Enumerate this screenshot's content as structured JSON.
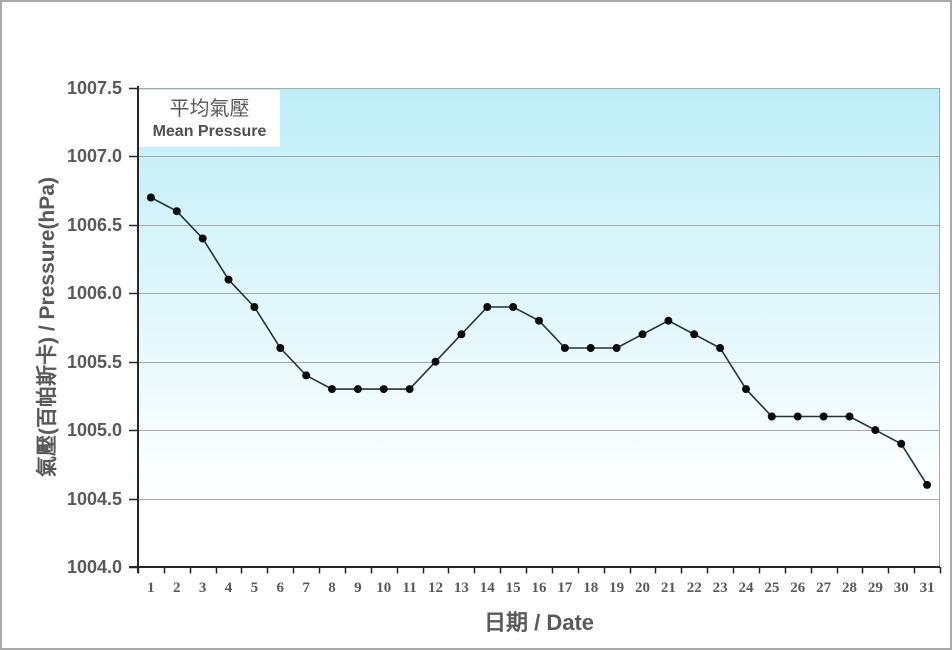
{
  "chart_data": {
    "type": "line",
    "legend": {
      "zh": "平均氣壓",
      "en": "Mean Pressure"
    },
    "xlabel": "日期 / Date",
    "ylabel": "氣壓(百帕斯卡) / Pressure(hPa)",
    "x": [
      "1",
      "2",
      "3",
      "4",
      "5",
      "6",
      "7",
      "8",
      "9",
      "10",
      "11",
      "12",
      "13",
      "14",
      "15",
      "16",
      "17",
      "18",
      "19",
      "20",
      "21",
      "22",
      "23",
      "24",
      "25",
      "26",
      "27",
      "28",
      "29",
      "30",
      "31"
    ],
    "series": [
      {
        "name": "Mean Pressure",
        "values": [
          1006.7,
          1006.6,
          1006.4,
          1006.1,
          1005.9,
          1005.6,
          1005.4,
          1005.3,
          1005.3,
          1005.3,
          1005.3,
          1005.5,
          1005.7,
          1005.9,
          1005.9,
          1005.8,
          1005.6,
          1005.6,
          1005.6,
          1005.7,
          1005.8,
          1005.7,
          1005.6,
          1005.3,
          1005.1,
          1005.1,
          1005.1,
          1005.1,
          1005.0,
          1004.9,
          1004.6
        ]
      }
    ],
    "ylim": [
      1004.0,
      1007.5
    ],
    "y_ticks": [
      "1007.5",
      "1007.0",
      "1006.5",
      "1006.0",
      "1005.5",
      "1005.0",
      "1004.5",
      "1004.0"
    ],
    "y_gridlines": [
      1007.0,
      1006.5,
      1006.0,
      1005.5,
      1005.0,
      1004.5
    ],
    "grid": "horizontal",
    "legend_position": "top-left",
    "colors": {
      "plot_bg_top": "#bfeef7",
      "plot_bg_bottom": "#ffffff",
      "gridline": "#a8a8a8",
      "plot_border": "#a8a8a8",
      "axis": "#262626",
      "line": "#23333d",
      "marker": "#0b0b0b",
      "text": "#595959",
      "frame": "#a9a9a9"
    }
  }
}
